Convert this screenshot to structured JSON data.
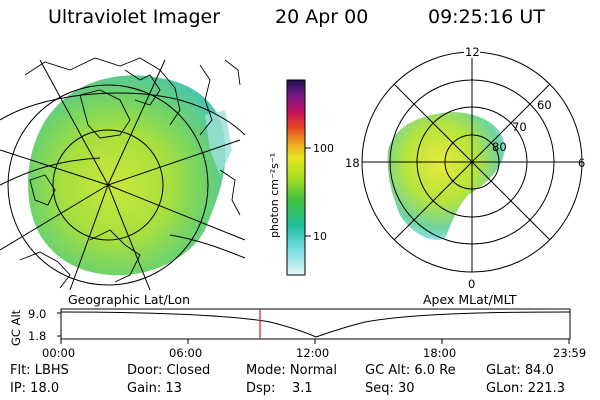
{
  "header": {
    "title": "Ultraviolet Imager",
    "date": "20 Apr 00",
    "time": "09:25:16 UT"
  },
  "colorbar": {
    "unit_label": "photon cm⁻²s⁻¹",
    "ticks": [
      "100",
      "10"
    ]
  },
  "left_panel": {
    "caption": "Geographic Lat/Lon"
  },
  "right_panel": {
    "caption": "Apex MLat/MLT",
    "mlt_labels": {
      "top": "12",
      "bottom": "0",
      "left": "18",
      "right": "6"
    },
    "lat_labels": [
      "60",
      "70",
      "80"
    ]
  },
  "altitude_plot": {
    "ylabel": "GC Alt",
    "yticks": [
      "9.0",
      "1.8"
    ],
    "xticks": [
      "00:00",
      "06:00",
      "12:00",
      "18:00",
      "23:59"
    ],
    "marker_color": "#d0201a"
  },
  "info": {
    "row1": [
      "Flt: LBHS",
      "Door: Closed",
      "Mode: Normal",
      "GC Alt: 6.0 Re",
      "GLat: 84.0"
    ],
    "row2": [
      "IP: 18.0",
      "Gain: 13",
      "Dsp:    3.1",
      "Seq: 30",
      "GLon: 221.3"
    ]
  }
}
